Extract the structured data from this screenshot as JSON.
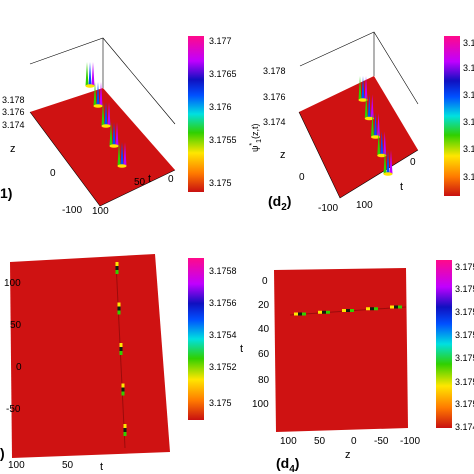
{
  "chart_data": [
    {
      "type": "surface-3d",
      "panel_label": "1)",
      "zlabel": "",
      "z_ticks": [
        "3.178",
        "3.176",
        "3.174"
      ],
      "x_axis_label": "z",
      "x_ticks": [
        "0",
        "-100"
      ],
      "y_axis_label": "t",
      "y_ticks": [
        "0",
        "50",
        "100"
      ],
      "colorbar_ticks": [
        "3.177",
        "3.1765",
        "3.176",
        "3.1755",
        "3.175"
      ],
      "colorbar_range": [
        3.1745,
        3.1772
      ],
      "background_value": 3.1745,
      "peak_value": 3.1772,
      "peak_count": 5
    },
    {
      "type": "surface-3d",
      "panel_label": "(d",
      "panel_label_sub": "2",
      "panel_label_close": ")",
      "zlabel": "ψ",
      "zlabel_sup": "*",
      "zlabel_sub": "1",
      "zlabel_tail": "(z,t)",
      "z_ticks": [
        "3.178",
        "3.176",
        "3.174"
      ],
      "x_axis_label": "z",
      "x_ticks": [
        "0",
        "-100"
      ],
      "y_axis_label": "t",
      "y_ticks": [
        "0",
        "100"
      ],
      "colorbar_ticks": [
        "3.1",
        "3.1",
        "3.1",
        "3.1",
        "3.1",
        "3.1"
      ],
      "colorbar_range": [
        3.1745,
        3.1772
      ],
      "background_value": 3.1745,
      "peak_value": 3.1772,
      "peak_count": 5
    },
    {
      "type": "surface-top-view",
      "panel_label": ")",
      "y_ticks": [
        "100",
        "50",
        "0",
        "-50"
      ],
      "x_axis_label": "t",
      "x_ticks": [
        "100",
        "50"
      ],
      "colorbar_ticks": [
        "3.1758",
        "3.1756",
        "3.1754",
        "3.1752",
        "3.175"
      ],
      "colorbar_range": [
        3.1749,
        3.1759
      ],
      "peak_count": 5,
      "peak_orientation": "vertical"
    },
    {
      "type": "surface-top-view",
      "panel_label": "(d",
      "panel_label_sub": "4",
      "panel_label_close": ")",
      "y_axis_label": "t",
      "y_ticks": [
        "0",
        "20",
        "40",
        "60",
        "80",
        "100"
      ],
      "x_axis_label": "z",
      "x_ticks": [
        "100",
        "50",
        "0",
        "-50",
        "-100"
      ],
      "colorbar_ticks": [
        "3.175",
        "3.175",
        "3.175",
        "3.175",
        "3.175",
        "3.175",
        "3.175",
        "3.174"
      ],
      "colorbar_range": [
        3.174,
        3.1756
      ],
      "peak_count": 5,
      "peak_orientation": "horizontal"
    }
  ]
}
